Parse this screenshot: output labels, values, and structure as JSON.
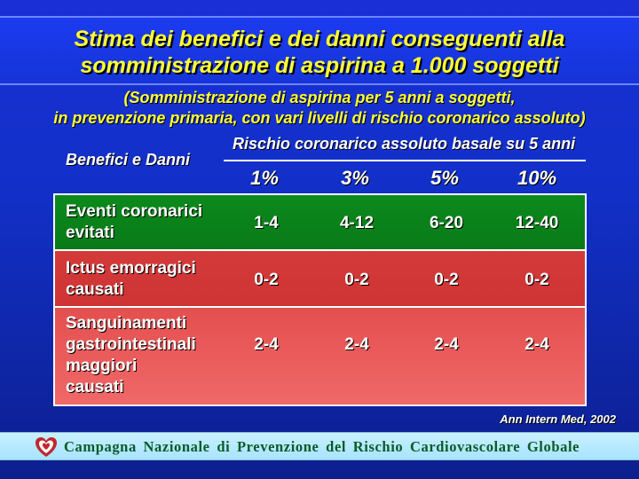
{
  "title": {
    "line1": "Stima dei benefici e dei danni conseguenti alla",
    "line2": "somministrazione di aspirina a 1.000 soggetti"
  },
  "subtitle": {
    "line1": "(Somministrazione di aspirina per 5 anni a soggetti,",
    "line2": "in prevenzione primaria, con vari livelli di rischio coronarico assoluto)"
  },
  "table": {
    "row_header": "Benefici e Danni",
    "column_group": "Rischio coronarico assoluto basale su 5 anni",
    "columns": [
      "1%",
      "3%",
      "5%",
      "10%"
    ],
    "rows": [
      {
        "label_lines": [
          "Eventi coronarici",
          "evitati"
        ],
        "values": [
          "1-4",
          "4-12",
          "6-20",
          "12-40"
        ],
        "color": "#0b8a1c"
      },
      {
        "label_lines": [
          "Ictus emorragici",
          "causati"
        ],
        "values": [
          "0-2",
          "0-2",
          "0-2",
          "0-2"
        ],
        "color": "#d43a3a"
      },
      {
        "label_lines": [
          "Sanguinamenti",
          "gastrointestinali",
          "maggiori",
          "causati"
        ],
        "values": [
          "2-4",
          "2-4",
          "2-4",
          "2-4"
        ],
        "color": "#e85858"
      }
    ]
  },
  "citation": "Ann Intern Med, 2002",
  "footer": {
    "text": "Campagna Nazionale di Prevenzione del Rischio Cardiovascolare Globale",
    "logo_icon": "heart-logo-icon",
    "logo_color": "#c0282d"
  },
  "colors": {
    "title": "#ffff33",
    "background": "#1230c8"
  }
}
